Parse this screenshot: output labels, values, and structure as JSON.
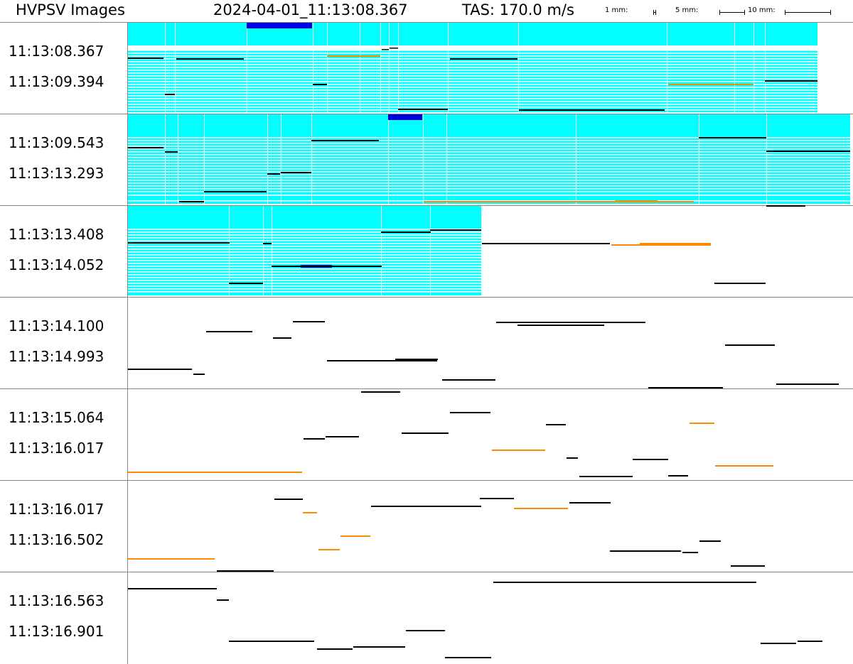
{
  "header": {
    "title": "HVPSV Images",
    "timestamp": "2024-04-01_11:13:08.367",
    "tas": "TAS: 170.0 m/s",
    "scale_1": "1 mm:",
    "scale_5": "5 mm:",
    "scale_10": "10 mm:"
  },
  "strips": [
    {
      "t1": "11:13:08.367",
      "t2": "11:13:09.394"
    },
    {
      "t1": "11:13:09.543",
      "t2": "11:13:13.293"
    },
    {
      "t1": "11:13:13.408",
      "t2": "11:13:14.052"
    },
    {
      "t1": "11:13:14.100",
      "t2": "11:13:14.993"
    },
    {
      "t1": "11:13:15.064",
      "t2": "11:13:16.017"
    },
    {
      "t1": "11:13:16.017",
      "t2": "11:13:16.502"
    },
    {
      "t1": "11:13:16.563",
      "t2": "11:13:16.901"
    }
  ],
  "colors": {
    "saturated": "#00ffff",
    "overload": "#0000dd",
    "particle": "#000000",
    "particle_alt": "#ff8c00",
    "divider": "#888888"
  }
}
